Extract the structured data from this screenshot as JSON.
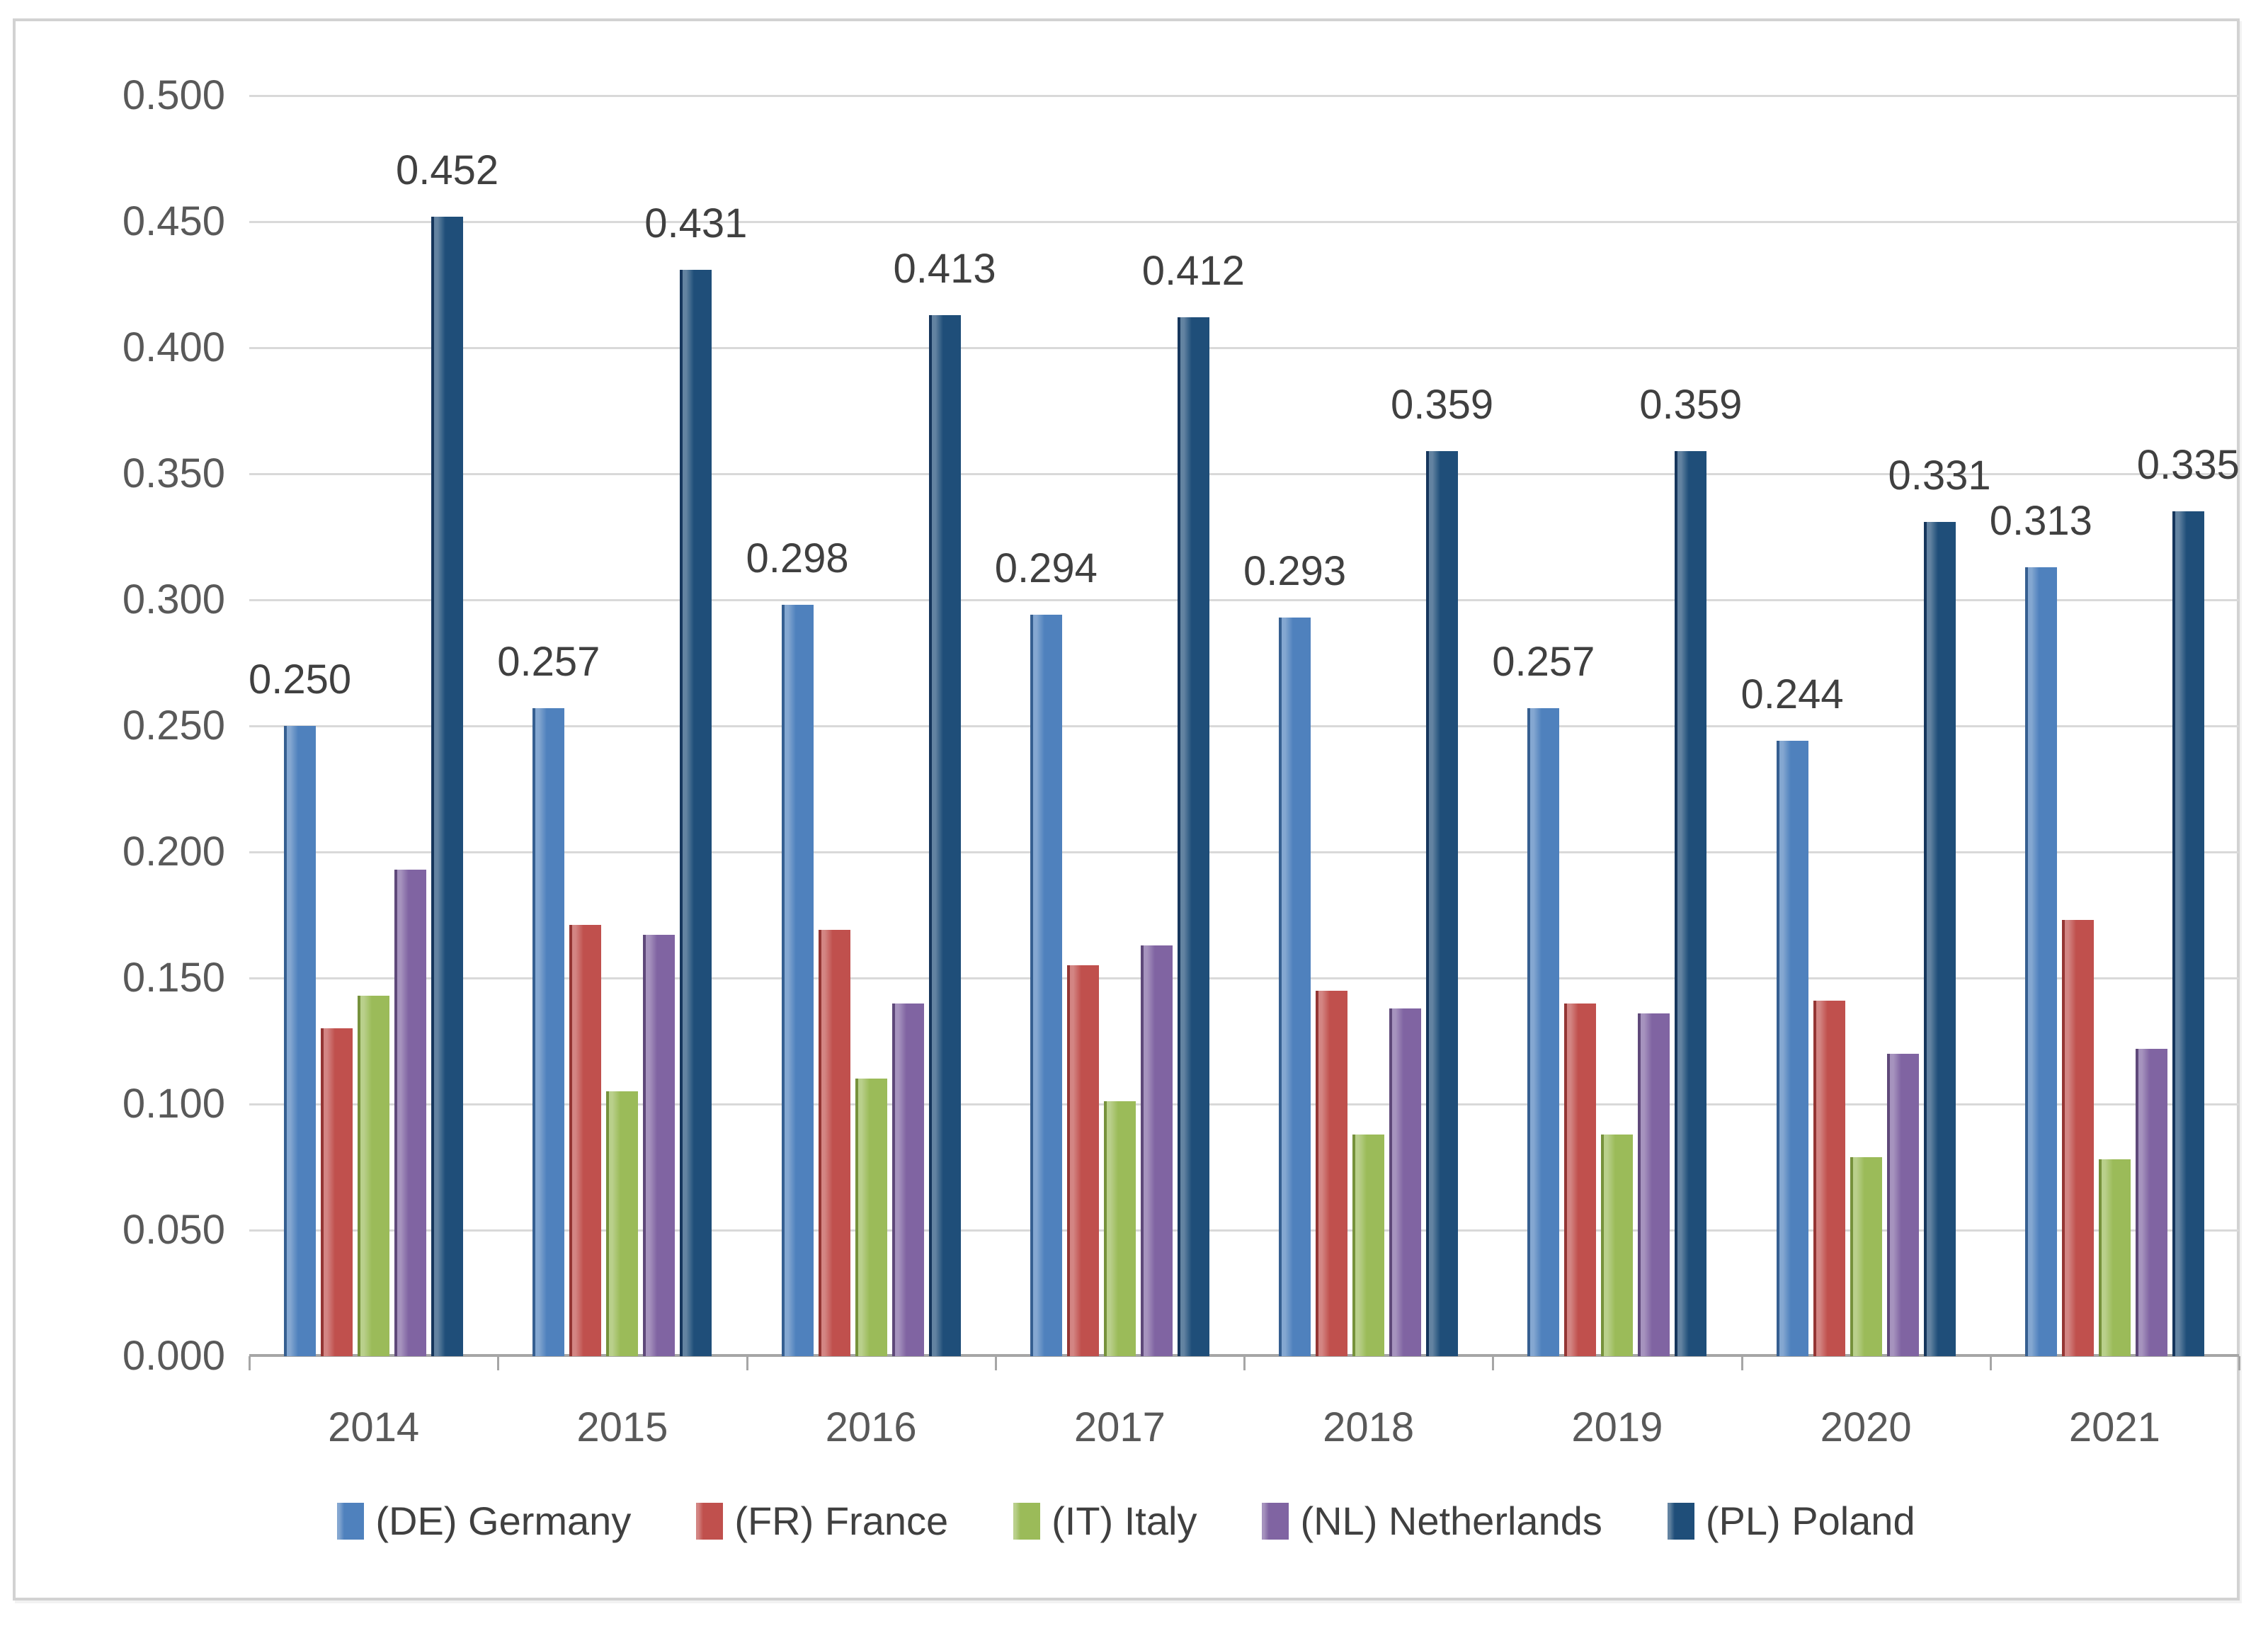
{
  "chart_data": {
    "type": "bar",
    "title": "",
    "categories": [
      "2014",
      "2015",
      "2016",
      "2017",
      "2018",
      "2019",
      "2020",
      "2021"
    ],
    "series": [
      {
        "name": "(DE) Germany",
        "color": "#4F81BD",
        "edge_color": "#365F91",
        "show_labels": true,
        "values": [
          0.25,
          0.257,
          0.298,
          0.294,
          0.293,
          0.257,
          0.244,
          0.313
        ]
      },
      {
        "name": "(FR) France",
        "color": "#C0504D",
        "edge_color": "#943634",
        "show_labels": false,
        "values": [
          0.13,
          0.171,
          0.169,
          0.155,
          0.145,
          0.14,
          0.141,
          0.173
        ]
      },
      {
        "name": "(IT) Italy",
        "color": "#9BBB59",
        "edge_color": "#76923C",
        "show_labels": false,
        "values": [
          0.143,
          0.105,
          0.11,
          0.101,
          0.088,
          0.088,
          0.079,
          0.078
        ]
      },
      {
        "name": "(NL) Netherlands",
        "color": "#8064A2",
        "edge_color": "#5F497A",
        "show_labels": false,
        "values": [
          0.193,
          0.167,
          0.14,
          0.163,
          0.138,
          0.136,
          0.12,
          0.122
        ]
      },
      {
        "name": "(PL) Poland",
        "color": "#1F4E79",
        "edge_color": "#16365C",
        "show_labels": true,
        "values": [
          0.452,
          0.431,
          0.413,
          0.412,
          0.359,
          0.359,
          0.331,
          0.335
        ]
      }
    ],
    "y_axis": {
      "min": 0,
      "max": 0.5,
      "tick_step": 0.05,
      "tick_labels": [
        "0.500",
        "0.450",
        "0.400",
        "0.350",
        "0.300",
        "0.250",
        "0.200",
        "0.150",
        "0.100",
        "0.050",
        "0.000"
      ]
    },
    "label_decimals": 3,
    "grid": true,
    "legend_position": "bottom",
    "colors": {
      "gridline": "#d9d9d9",
      "axis_line": "#a6a6a6",
      "axis_text": "#595959",
      "label_text": "#404040",
      "frame_border": "#d2d2d2"
    }
  }
}
